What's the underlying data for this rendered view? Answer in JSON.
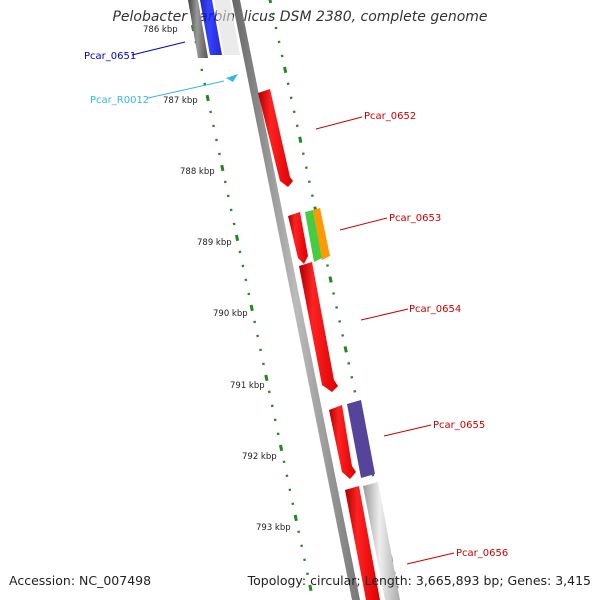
{
  "title": "Pelobacter carbinolicus DSM 2380, complete genome",
  "footer": {
    "accession": "Accession: NC_007498",
    "summary": "Topology: circular; Length: 3,665,893 bp; Genes: 3,415"
  },
  "ruler": {
    "labels": [
      "786 kbp",
      "787 kbp",
      "788 kbp",
      "789 kbp",
      "790 kbp",
      "791 kbp",
      "792 kbp",
      "793 kbp"
    ]
  },
  "features": [
    {
      "name": "Pcar_0651",
      "color": "#0000cc",
      "label_color": "#0000cc"
    },
    {
      "name": "Pcar_R0012",
      "color": "#33bbdd",
      "label_color": "#33bbdd"
    },
    {
      "name": "Pcar_0652",
      "color": "#ee0000",
      "label_color": "#cc0000"
    },
    {
      "name": "Pcar_0653",
      "color": "#ee0000",
      "label_color": "#cc0000"
    },
    {
      "name": "Pcar_0654",
      "color": "#ee0000",
      "label_color": "#cc0000"
    },
    {
      "name": "Pcar_0655",
      "color": "#ee0000",
      "label_color": "#cc0000"
    },
    {
      "name": "Pcar_0656",
      "color": "#ee0000",
      "label_color": "#cc0000"
    }
  ],
  "colors": {
    "backbone": "#888888",
    "tick": "#228822",
    "cog_green": "#44cc44",
    "cog_orange": "#ff9900",
    "cog_purple": "#554499",
    "cog_gray": "#bbbbbb",
    "cog_darkgray": "#666666"
  }
}
